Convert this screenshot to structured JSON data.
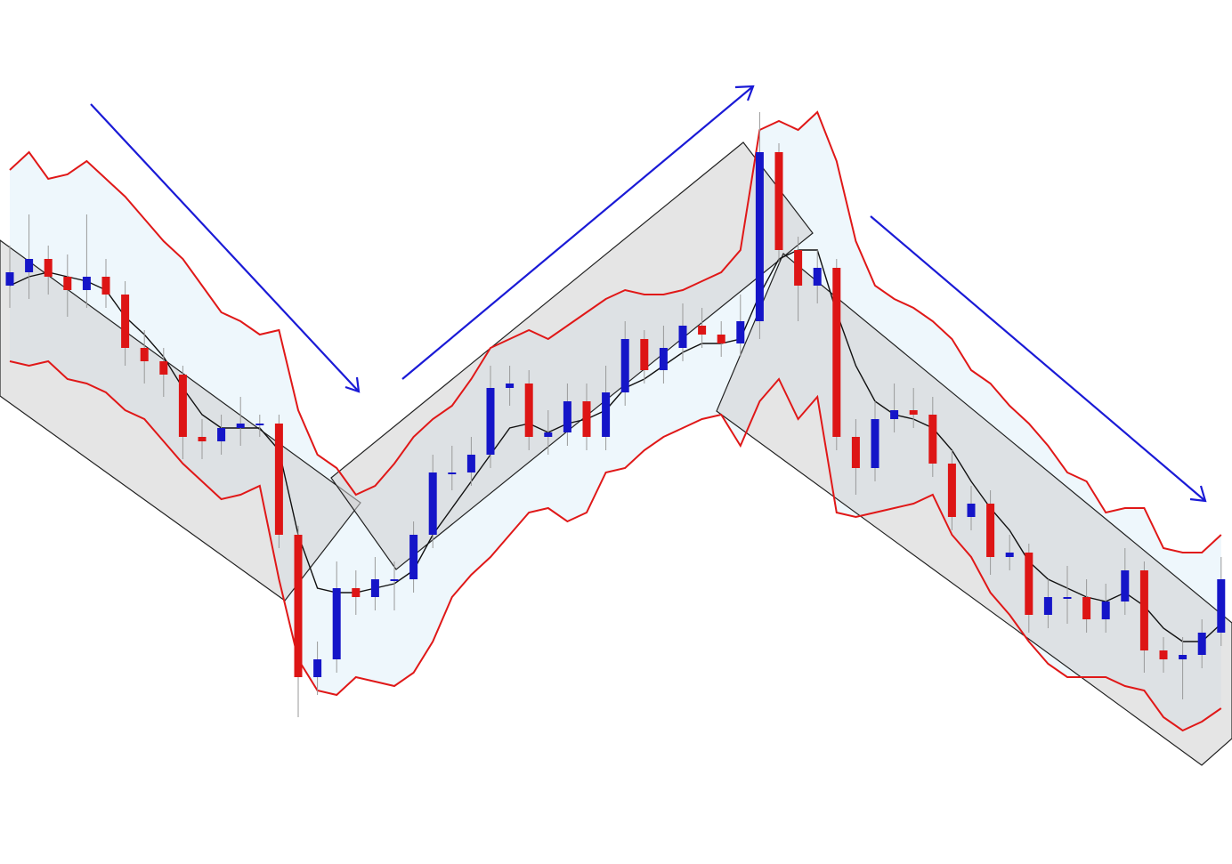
{
  "chart_data": {
    "type": "candlestick",
    "ylim": [
      0,
      971
    ],
    "open": [
      650,
      665,
      680,
      660,
      645,
      660,
      640,
      580,
      565,
      550,
      480,
      475,
      490,
      495,
      495,
      370,
      210,
      230,
      310,
      300,
      320,
      320,
      370,
      440,
      440,
      460,
      535,
      540,
      480,
      485,
      520,
      480,
      530,
      590,
      555,
      580,
      605,
      595,
      585,
      610,
      800,
      690,
      650,
      670,
      480,
      445,
      500,
      510,
      505,
      450,
      390,
      405,
      345,
      350,
      280,
      300,
      300,
      275,
      295,
      330,
      240,
      230,
      235,
      260
    ],
    "high": [
      695,
      730,
      695,
      685,
      730,
      680,
      655,
      600,
      580,
      560,
      500,
      505,
      525,
      505,
      505,
      380,
      250,
      340,
      330,
      345,
      340,
      385,
      460,
      470,
      480,
      560,
      560,
      555,
      510,
      540,
      540,
      560,
      610,
      600,
      605,
      630,
      625,
      610,
      640,
      845,
      810,
      705,
      690,
      680,
      500,
      520,
      540,
      535,
      525,
      465,
      425,
      420,
      370,
      360,
      320,
      335,
      320,
      315,
      355,
      340,
      255,
      255,
      275,
      345
    ],
    "low": [
      625,
      635,
      640,
      615,
      625,
      625,
      560,
      540,
      525,
      455,
      455,
      460,
      470,
      480,
      355,
      165,
      190,
      215,
      280,
      285,
      285,
      305,
      355,
      420,
      425,
      445,
      515,
      465,
      460,
      470,
      465,
      465,
      515,
      540,
      540,
      565,
      580,
      570,
      570,
      590,
      675,
      610,
      630,
      465,
      415,
      430,
      485,
      490,
      435,
      375,
      375,
      325,
      330,
      260,
      265,
      270,
      260,
      260,
      280,
      215,
      215,
      185,
      220,
      245
    ],
    "close": [
      665,
      680,
      660,
      645,
      660,
      640,
      580,
      565,
      550,
      480,
      475,
      490,
      495,
      495,
      370,
      210,
      230,
      310,
      300,
      320,
      320,
      370,
      440,
      440,
      460,
      535,
      540,
      480,
      485,
      520,
      480,
      530,
      590,
      555,
      580,
      605,
      595,
      585,
      610,
      800,
      690,
      650,
      670,
      480,
      445,
      500,
      510,
      505,
      450,
      390,
      405,
      345,
      350,
      280,
      300,
      300,
      275,
      295,
      330,
      240,
      230,
      235,
      260,
      320
    ],
    "up_color": "#1515c8",
    "down_color": "#dd1515",
    "wick_color": "#9a9a9a",
    "upper_band": [
      780,
      800,
      770,
      775,
      790,
      770,
      750,
      725,
      700,
      680,
      650,
      620,
      610,
      595,
      600,
      510,
      460,
      445,
      415,
      425,
      450,
      480,
      500,
      515,
      545,
      580,
      590,
      600,
      590,
      605,
      620,
      635,
      645,
      640,
      640,
      645,
      655,
      665,
      690,
      825,
      835,
      825,
      845,
      790,
      700,
      650,
      635,
      625,
      610,
      590,
      555,
      540,
      515,
      495,
      470,
      440,
      430,
      395,
      400,
      400,
      355,
      350,
      350,
      370
    ],
    "lower_band": [
      565,
      560,
      565,
      545,
      540,
      530,
      510,
      500,
      475,
      450,
      430,
      410,
      415,
      425,
      320,
      230,
      195,
      190,
      210,
      205,
      200,
      215,
      250,
      300,
      325,
      345,
      370,
      395,
      400,
      385,
      395,
      440,
      445,
      465,
      480,
      490,
      500,
      505,
      470,
      520,
      545,
      500,
      525,
      395,
      390,
      395,
      400,
      405,
      415,
      370,
      345,
      305,
      280,
      250,
      225,
      210,
      210,
      210,
      200,
      195,
      165,
      150,
      160,
      175
    ],
    "band_color": "#e01818",
    "band_fill": "#eef7fc",
    "moving_average": [
      650,
      660,
      665,
      660,
      655,
      645,
      615,
      595,
      570,
      535,
      505,
      490,
      490,
      490,
      465,
      370,
      310,
      305,
      305,
      310,
      315,
      330,
      370,
      400,
      430,
      460,
      490,
      495,
      485,
      495,
      500,
      510,
      535,
      545,
      560,
      575,
      585,
      585,
      590,
      640,
      680,
      690,
      690,
      620,
      560,
      520,
      505,
      500,
      490,
      465,
      430,
      400,
      375,
      340,
      320,
      310,
      300,
      295,
      305,
      290,
      265,
      250,
      250,
      270
    ],
    "ma_color": "#111111"
  }
}
